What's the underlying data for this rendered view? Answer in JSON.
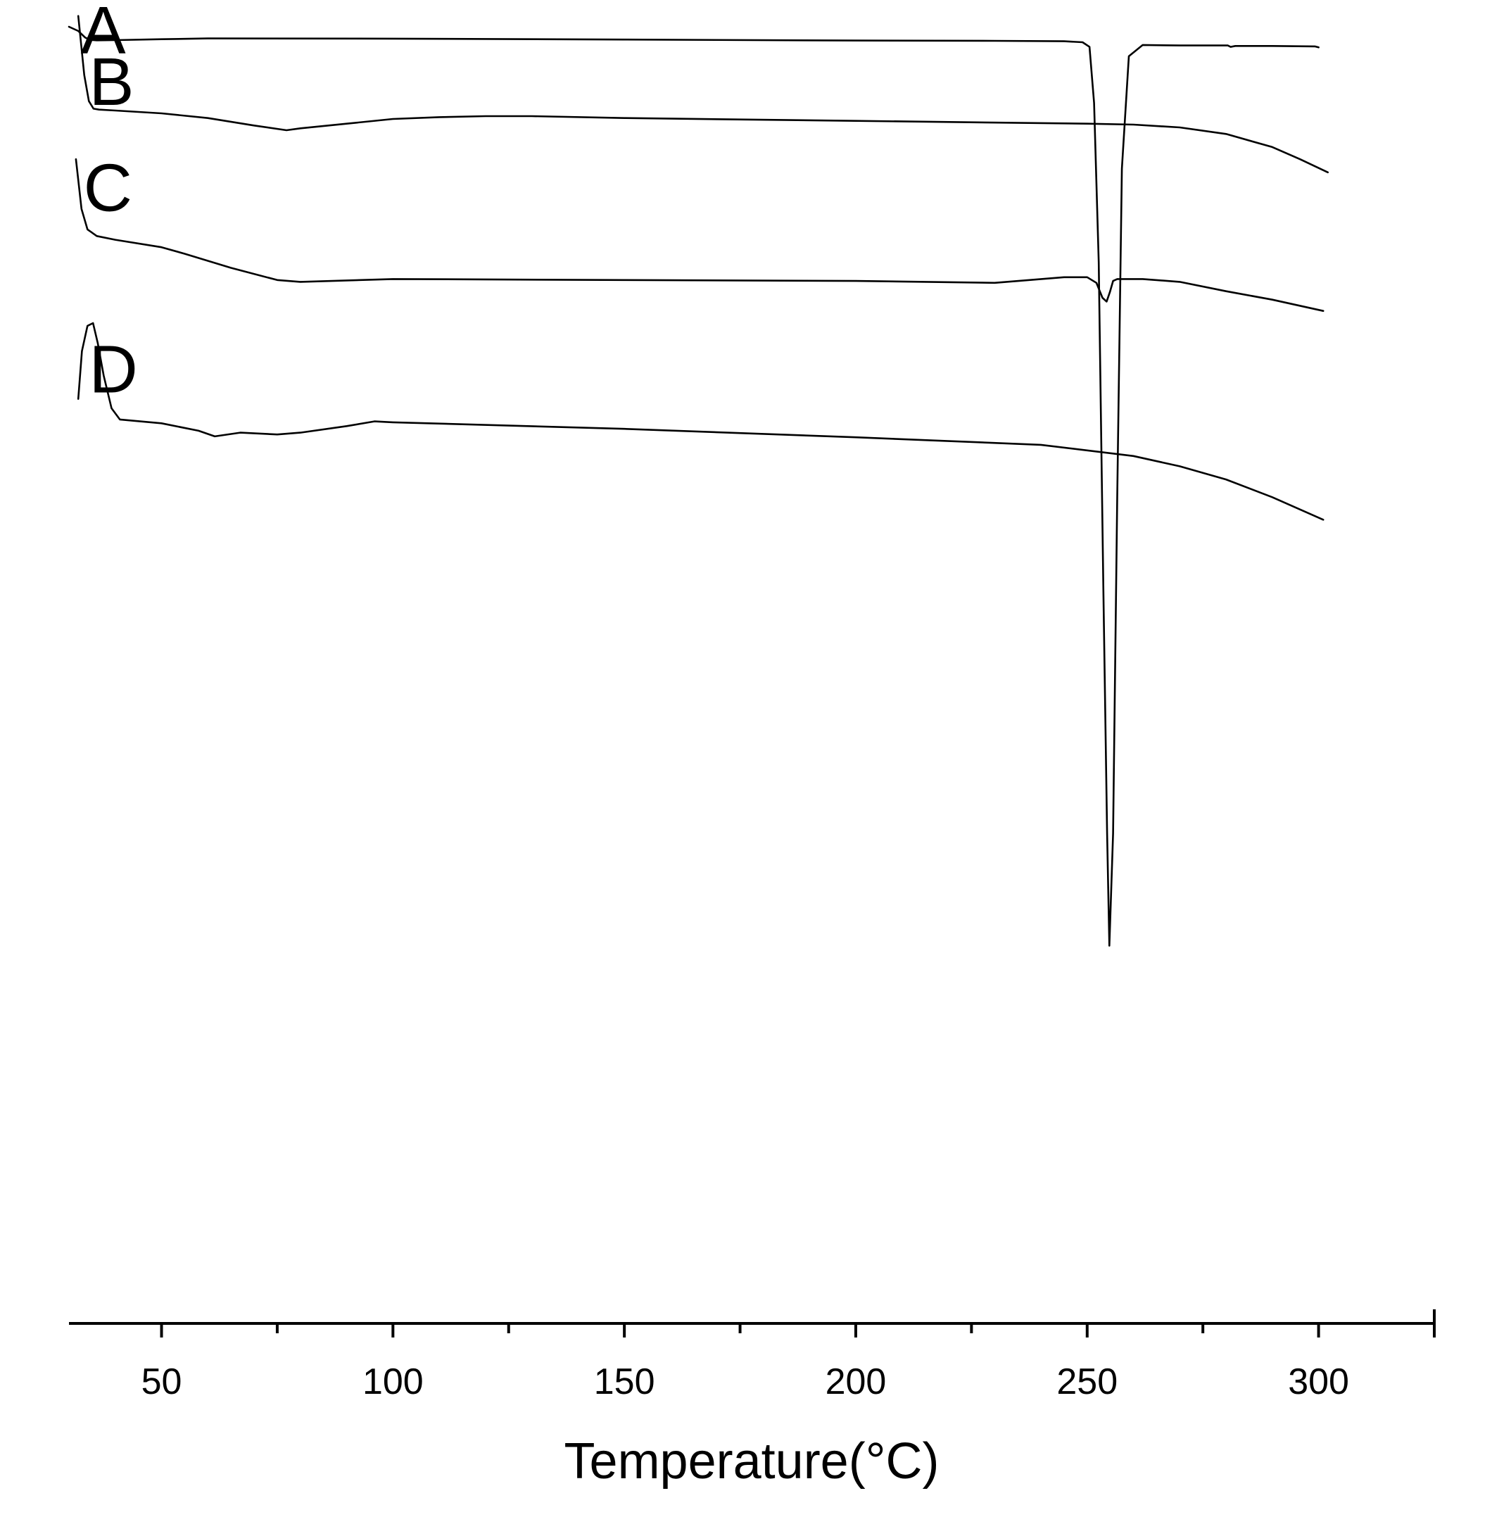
{
  "chart_data": {
    "type": "line",
    "title": "",
    "xlabel": "Temperature(°C)",
    "ylabel": "",
    "xlim": [
      30,
      325
    ],
    "x_ticks": [
      50,
      100,
      150,
      200,
      250,
      300
    ],
    "x_tick_labels": [
      "50",
      "100",
      "150",
      "200",
      "250",
      "300"
    ],
    "minor_ticks": true,
    "grid": false,
    "legend": "none",
    "series_color": "#000000",
    "y_units": "relative heat flow (arbitrary, offset per curve)",
    "series": [
      {
        "name": "A",
        "x": [
          30,
          32,
          33.5,
          34.5,
          36,
          40,
          50,
          60,
          100,
          150,
          200,
          230,
          245,
          249,
          250.5,
          251.5,
          252.5,
          253.5,
          254.3,
          254.8,
          255.6,
          256.5,
          257.5,
          259,
          262,
          270,
          280.4,
          281,
          282,
          290,
          299.2,
          300
        ],
        "y": [
          1.5,
          -3,
          -10,
          -12.5,
          -13,
          -12.8,
          -11.8,
          -11,
          -11.2,
          -12.2,
          -13.2,
          -13.5,
          -14,
          -15,
          -20,
          -80,
          -250,
          -600,
          -860,
          -980,
          -860,
          -500,
          -150,
          -30,
          -18,
          -18.5,
          -18.5,
          -20,
          -19,
          -19,
          -19.5,
          -20.5
        ]
      },
      {
        "name": "B",
        "x": [
          32,
          33.3,
          34.3,
          35.3,
          36.5,
          40,
          50,
          60,
          70,
          77,
          80,
          90,
          100,
          110,
          120,
          130,
          150,
          200,
          250,
          260,
          270,
          280,
          290,
          296,
          302
        ],
        "y": [
          13,
          -50,
          -78,
          -86,
          -87,
          -88,
          -91,
          -96,
          -104,
          -109,
          -107,
          -102,
          -97,
          -95,
          -94,
          -94,
          -96,
          -99,
          -102,
          -103,
          -106,
          -113,
          -127,
          -140,
          -154
        ]
      },
      {
        "name": "C",
        "x": [
          31.5,
          32.7,
          34,
          36,
          40,
          50,
          55,
          65,
          75,
          80,
          100,
          150,
          200,
          230,
          245,
          250,
          252,
          253.3,
          254.2,
          254.9,
          255.6,
          256.5,
          262,
          270,
          280,
          290,
          301
        ],
        "y": [
          -140,
          -193,
          -215,
          -222,
          -226,
          -234,
          -241,
          -256,
          -269,
          -271,
          -268,
          -269,
          -270,
          -272,
          -266,
          -266,
          -272,
          -288,
          -292,
          -282,
          -270,
          -268,
          -268,
          -271,
          -281,
          -290,
          -302
        ]
      },
      {
        "name": "D",
        "x": [
          32,
          32.8,
          34,
          35.2,
          36.2,
          37.5,
          39.2,
          41,
          50,
          58,
          61.5,
          67,
          75,
          80,
          90,
          96,
          100,
          150,
          200,
          240,
          260,
          270,
          280,
          290,
          301
        ],
        "y": [
          -396,
          -345,
          -318,
          -315,
          -336,
          -371,
          -406,
          -418,
          -422,
          -430,
          -436,
          -432,
          -434,
          -432,
          -425,
          -420,
          -421,
          -428,
          -437,
          -445,
          -457,
          -468,
          -482,
          -501,
          -525
        ]
      }
    ],
    "annotations": [
      {
        "text": "A",
        "x": 37.4,
        "y": 0
      },
      {
        "text": "B",
        "x": 39.2,
        "y": -55
      },
      {
        "text": "C",
        "x": 38.4,
        "y": -168
      },
      {
        "text": "D",
        "x": 39.6,
        "y": -362
      }
    ]
  }
}
